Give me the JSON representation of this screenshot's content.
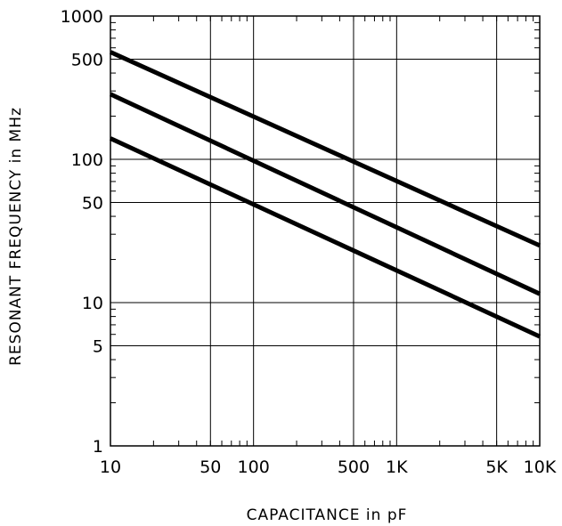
{
  "chart_data": {
    "type": "line",
    "xlabel": "CAPACITANCE in pF",
    "ylabel": "RESONANT FREQUENCY in MHz",
    "x_scale": "log",
    "y_scale": "log",
    "xlim": [
      10,
      10000
    ],
    "ylim": [
      1,
      1000
    ],
    "grid": true,
    "x_ticks": [
      {
        "value": 10,
        "label": "10"
      },
      {
        "value": 50,
        "label": "50"
      },
      {
        "value": 100,
        "label": "100"
      },
      {
        "value": 500,
        "label": "500"
      },
      {
        "value": 1000,
        "label": "1K"
      },
      {
        "value": 5000,
        "label": "5K"
      },
      {
        "value": 10000,
        "label": "10K"
      }
    ],
    "y_ticks": [
      {
        "value": 1,
        "label": "1"
      },
      {
        "value": 5,
        "label": "5"
      },
      {
        "value": 10,
        "label": "10"
      },
      {
        "value": 50,
        "label": "50"
      },
      {
        "value": 100,
        "label": "100"
      },
      {
        "value": 500,
        "label": "500"
      },
      {
        "value": 1000,
        "label": "1000"
      }
    ],
    "series": [
      {
        "x": [
          10,
          10000
        ],
        "y": [
          560,
          25
        ]
      },
      {
        "x": [
          10,
          10000
        ],
        "y": [
          285,
          11.5
        ]
      },
      {
        "x": [
          10,
          10000
        ],
        "y": [
          140,
          5.8
        ]
      }
    ],
    "line_color": "#000000"
  }
}
